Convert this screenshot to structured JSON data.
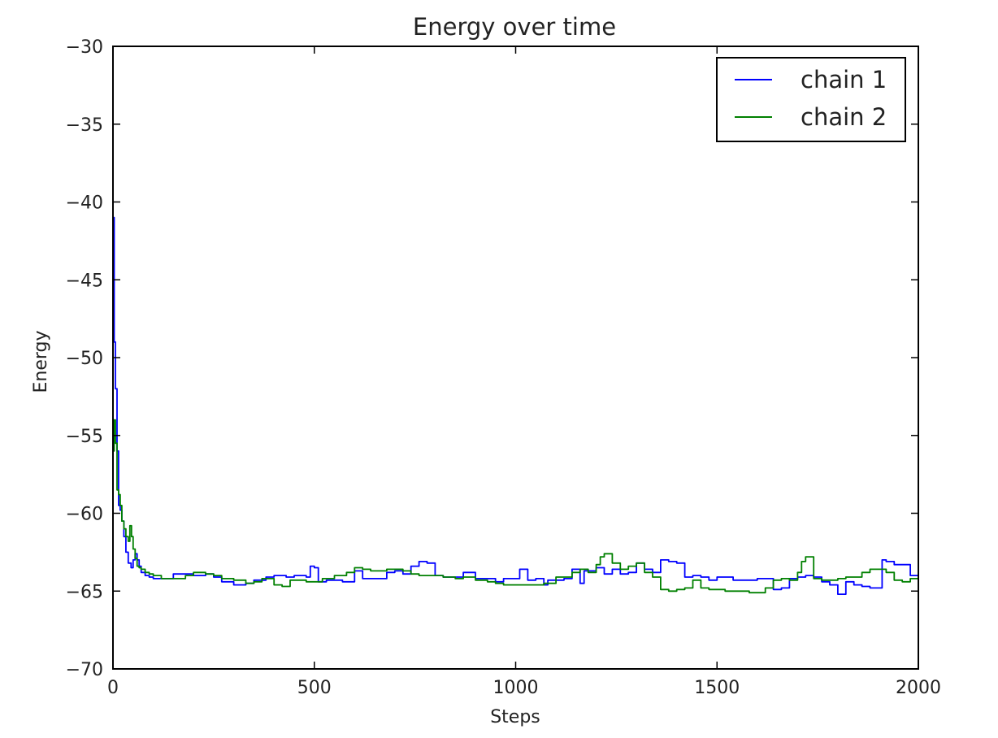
{
  "chart_data": {
    "type": "line",
    "title": "Energy over time",
    "xlabel": "Steps",
    "ylabel": "Energy",
    "xlim": [
      0,
      2000
    ],
    "ylim": [
      -70,
      -30
    ],
    "xticks": [
      0,
      500,
      1000,
      1500,
      2000
    ],
    "yticks": [
      -30,
      -35,
      -40,
      -45,
      -50,
      -55,
      -60,
      -65,
      -70
    ],
    "xtick_labels": [
      "0",
      "500",
      "1000",
      "1500",
      "2000"
    ],
    "ytick_labels": [
      "−30",
      "−35",
      "−40",
      "−45",
      "−50",
      "−55",
      "−60",
      "−65",
      "−70"
    ],
    "grid": false,
    "legend_position": "top-right",
    "series": [
      {
        "name": "chain 1",
        "color": "#0000ff",
        "x": [
          0,
          3,
          6,
          10,
          14,
          18,
          22,
          27,
          32,
          38,
          45,
          50,
          55,
          60,
          65,
          70,
          80,
          90,
          100,
          120,
          150,
          180,
          200,
          230,
          250,
          270,
          300,
          330,
          350,
          380,
          400,
          430,
          450,
          480,
          490,
          500,
          510,
          530,
          550,
          570,
          600,
          620,
          650,
          680,
          700,
          720,
          740,
          760,
          780,
          800,
          820,
          850,
          870,
          900,
          930,
          950,
          970,
          1000,
          1010,
          1030,
          1050,
          1070,
          1080,
          1100,
          1120,
          1140,
          1160,
          1170,
          1200,
          1220,
          1240,
          1260,
          1280,
          1300,
          1320,
          1340,
          1360,
          1380,
          1400,
          1420,
          1440,
          1460,
          1480,
          1500,
          1520,
          1540,
          1560,
          1580,
          1600,
          1620,
          1640,
          1660,
          1680,
          1700,
          1720,
          1740,
          1760,
          1780,
          1800,
          1820,
          1840,
          1860,
          1880,
          1900,
          1910,
          1920,
          1940,
          1960,
          1980,
          2000
        ],
        "y": [
          -41,
          -49,
          -52,
          -56,
          -59.5,
          -59.8,
          -60.5,
          -61.5,
          -62.5,
          -63.2,
          -63.5,
          -63,
          -62.6,
          -63,
          -63.4,
          -63.8,
          -64,
          -64.1,
          -64.2,
          -64.2,
          -63.9,
          -63.9,
          -64,
          -63.9,
          -64.1,
          -64.4,
          -64.6,
          -64.5,
          -64.3,
          -64.1,
          -64,
          -64.1,
          -64,
          -64.1,
          -63.4,
          -63.5,
          -64.4,
          -64.3,
          -64.3,
          -64.4,
          -63.7,
          -64.2,
          -64.2,
          -63.8,
          -63.7,
          -63.9,
          -63.4,
          -63.1,
          -63.2,
          -64,
          -64.1,
          -64.1,
          -63.8,
          -64.2,
          -64.2,
          -64.4,
          -64.2,
          -64.2,
          -63.6,
          -64.3,
          -64.2,
          -64.6,
          -64.3,
          -64.3,
          -64.2,
          -63.6,
          -64.5,
          -63.7,
          -63.5,
          -63.9,
          -63.6,
          -63.9,
          -63.8,
          -63.2,
          -63.6,
          -63.8,
          -63,
          -63.1,
          -63.2,
          -64.1,
          -64,
          -64.1,
          -64.3,
          -64.1,
          -64.1,
          -64.3,
          -64.3,
          -64.3,
          -64.2,
          -64.2,
          -64.9,
          -64.8,
          -64.2,
          -64.1,
          -64,
          -64.1,
          -64.4,
          -64.6,
          -65.2,
          -64.4,
          -64.6,
          -64.7,
          -64.8,
          -64.8,
          -63,
          -63.1,
          -63.3,
          -63.3,
          -64,
          -64.1
        ]
      },
      {
        "name": "chain 2",
        "color": "#008000",
        "x": [
          0,
          3,
          6,
          10,
          14,
          18,
          22,
          27,
          32,
          38,
          42,
          46,
          50,
          55,
          60,
          65,
          70,
          80,
          90,
          100,
          120,
          150,
          180,
          200,
          230,
          250,
          270,
          300,
          330,
          350,
          370,
          400,
          420,
          440,
          460,
          480,
          500,
          520,
          550,
          580,
          600,
          620,
          640,
          660,
          680,
          700,
          720,
          740,
          760,
          780,
          800,
          820,
          850,
          870,
          900,
          930,
          950,
          970,
          1000,
          1030,
          1050,
          1070,
          1100,
          1120,
          1140,
          1160,
          1180,
          1200,
          1210,
          1220,
          1240,
          1260,
          1280,
          1300,
          1320,
          1340,
          1360,
          1380,
          1400,
          1420,
          1440,
          1460,
          1480,
          1500,
          1520,
          1540,
          1560,
          1580,
          1600,
          1620,
          1640,
          1660,
          1680,
          1700,
          1710,
          1720,
          1740,
          1760,
          1780,
          1800,
          1820,
          1840,
          1860,
          1880,
          1900,
          1920,
          1940,
          1960,
          1980,
          2000
        ],
        "y": [
          -56,
          -54,
          -55.5,
          -58.5,
          -58.8,
          -59.5,
          -60.5,
          -61,
          -61.5,
          -61.8,
          -60.8,
          -61.5,
          -62.3,
          -62.9,
          -63.4,
          -63.5,
          -63.6,
          -63.8,
          -63.9,
          -64,
          -64.2,
          -64.2,
          -64,
          -63.8,
          -63.9,
          -64,
          -64.2,
          -64.3,
          -64.5,
          -64.4,
          -64.2,
          -64.6,
          -64.7,
          -64.3,
          -64.3,
          -64.4,
          -64.4,
          -64.2,
          -64,
          -63.8,
          -63.5,
          -63.6,
          -63.7,
          -63.7,
          -63.6,
          -63.6,
          -63.7,
          -63.9,
          -64,
          -64,
          -64,
          -64.1,
          -64.2,
          -64.1,
          -64.3,
          -64.4,
          -64.5,
          -64.6,
          -64.6,
          -64.6,
          -64.6,
          -64.5,
          -64.1,
          -64.1,
          -63.8,
          -63.6,
          -63.8,
          -63.3,
          -62.8,
          -62.6,
          -63.2,
          -63.6,
          -63.4,
          -63.2,
          -63.8,
          -64.1,
          -64.9,
          -65,
          -64.9,
          -64.8,
          -64.3,
          -64.8,
          -64.9,
          -64.9,
          -65,
          -65,
          -65,
          -65.1,
          -65.1,
          -64.8,
          -64.3,
          -64.2,
          -64.3,
          -63.8,
          -63.1,
          -62.8,
          -64.2,
          -64.3,
          -64.3,
          -64.2,
          -64.1,
          -64.1,
          -63.8,
          -63.6,
          -63.6,
          -63.8,
          -64.3,
          -64.4,
          -64.2,
          -64.2
        ]
      }
    ]
  }
}
